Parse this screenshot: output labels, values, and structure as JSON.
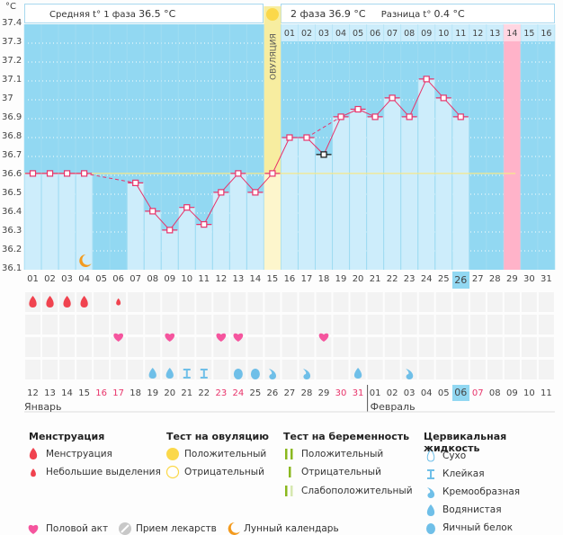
{
  "header": {
    "unit": "°C",
    "phase1_label": "Средняя t° 1 фаза",
    "phase1_value": "36.5 °C",
    "phase2_label": "2 фаза",
    "phase2_value": "36.9 °C",
    "diff_label": "Разница t°",
    "diff_value": "0.4 °C",
    "ovulation_label": "ОВУЛЯЦИЯ"
  },
  "colors": {
    "bg_blue": "#92d8f2",
    "bar_light": "#cdedfb",
    "line": "#e8336a",
    "ovulation": "#f7eda0",
    "ovulation_light": "#fdf6cc",
    "pink_col": "#ffb3c9",
    "coverline": "#f5e88a",
    "today": "#92d8f2"
  },
  "chart_data": {
    "type": "line",
    "title": "",
    "xlabel": "",
    "ylabel": "°C",
    "ylim": [
      36.1,
      37.4
    ],
    "yticks": [
      "37.4",
      "37.3",
      "37.2",
      "37.1",
      "37",
      "36.9",
      "36.8",
      "36.7",
      "36.6",
      "36.5",
      "36.4",
      "36.3",
      "36.2",
      "36.1"
    ],
    "cycle_days": [
      "01",
      "02",
      "03",
      "04",
      "05",
      "06",
      "07",
      "08",
      "09",
      "10",
      "11",
      "12",
      "13",
      "14",
      "15",
      "16",
      "17",
      "18",
      "19",
      "20",
      "21",
      "22",
      "23",
      "24",
      "25",
      "26",
      "27",
      "28",
      "29",
      "30",
      "31"
    ],
    "temperatures": [
      36.61,
      36.61,
      36.61,
      36.61,
      null,
      null,
      36.56,
      36.41,
      36.31,
      36.43,
      36.34,
      36.51,
      36.61,
      36.51,
      36.61,
      36.8,
      36.8,
      36.71,
      36.91,
      36.95,
      36.91,
      37.01,
      36.91,
      37.11,
      37.01,
      36.91,
      null,
      null,
      null,
      null,
      null
    ],
    "excluded_day_index": 17,
    "coverline": 36.61,
    "ovulation_day": "15",
    "phase2_days": [
      "01",
      "02",
      "03",
      "04",
      "05",
      "06",
      "07",
      "08",
      "09",
      "10",
      "11",
      "12",
      "13",
      "14",
      "15",
      "16"
    ],
    "highlight_phase2_day": "14",
    "today_cycle_day": "26",
    "moon_day": "04"
  },
  "calendar": {
    "dates": [
      "12",
      "13",
      "14",
      "15",
      "16",
      "17",
      "18",
      "19",
      "20",
      "21",
      "22",
      "23",
      "24",
      "25",
      "26",
      "27",
      "28",
      "29",
      "30",
      "31",
      "01",
      "02",
      "03",
      "04",
      "05",
      "06",
      "07",
      "08",
      "09",
      "10",
      "11"
    ],
    "weekend_indices": [
      4,
      5,
      11,
      12,
      18,
      19,
      26
    ],
    "today_index": 25,
    "month1": "Январь",
    "month2": "Февраль",
    "month2_start_index": 20
  },
  "symptoms": {
    "menstruation": {
      "01": "full",
      "02": "full",
      "03": "full",
      "04": "full",
      "06": "spotting"
    },
    "intercourse": [
      "06",
      "09",
      "12",
      "13",
      "18"
    ],
    "cervical": {
      "08": "watery",
      "09": "watery",
      "10": "sticky",
      "11": "sticky",
      "13": "eggwhite",
      "14": "eggwhite",
      "15": "creamy",
      "17": "creamy",
      "20": "watery",
      "23": "creamy"
    }
  },
  "legend": {
    "menstruation": {
      "title": "Менструация",
      "items": [
        "Менструация",
        "Небольшие выделения"
      ]
    },
    "ovulation_test": {
      "title": "Тест на овуляцию",
      "items": [
        "Положительный",
        "Отрицательный"
      ]
    },
    "pregnancy_test": {
      "title": "Тест на беременность",
      "items": [
        "Положительный",
        "Отрицательный",
        "Слабоположительный"
      ]
    },
    "cervical": {
      "title": "Цервикальная жидкость",
      "items": [
        "Сухо",
        "Клейкая",
        "Кремообразная",
        "Водянистая",
        "Яичный белок"
      ]
    },
    "bottom": [
      "Половой акт",
      "Прием лекарств",
      "Лунный календарь"
    ]
  }
}
